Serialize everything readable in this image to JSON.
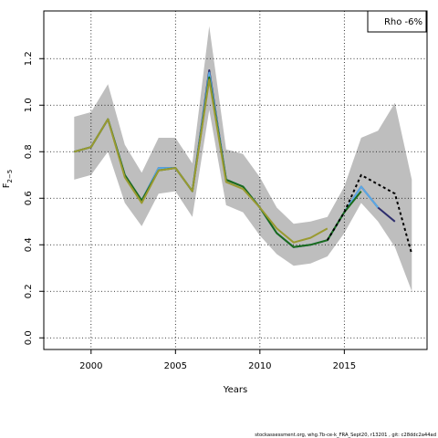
{
  "chart_data": {
    "type": "line",
    "xlabel": "Years",
    "ylabel": "F",
    "ylabel_subscript": "2−5",
    "legend_text": "Rho -6%",
    "legend_placement": "top-right",
    "footer": "stockassessment.org, whg.7b-ce-k_FRA_Sept20, r13201 , git: c28ddc2a44ad",
    "grid": true,
    "xlim": [
      1997.2,
      2019.9
    ],
    "ylim": [
      -0.05,
      1.405
    ],
    "x_ticks": [
      2000,
      2005,
      2010,
      2015
    ],
    "y_ticks": [
      0.0,
      0.2,
      0.4,
      0.6,
      0.8,
      1.0,
      1.2
    ],
    "x_tick_labels": [
      "2000",
      "2005",
      "2010",
      "2015"
    ],
    "y_tick_labels": [
      "0.0",
      "0.2",
      "0.4",
      "0.6",
      "0.8",
      "1.0",
      "1.2"
    ],
    "confidence_band": {
      "x": [
        1999,
        2000,
        2001,
        2002,
        2003,
        2004,
        2005,
        2006,
        2007,
        2008,
        2009,
        2010,
        2011,
        2012,
        2013,
        2014,
        2015,
        2016,
        2017,
        2018,
        2019
      ],
      "lower": [
        0.68,
        0.7,
        0.8,
        0.58,
        0.48,
        0.62,
        0.63,
        0.52,
        0.98,
        0.57,
        0.54,
        0.44,
        0.36,
        0.31,
        0.32,
        0.35,
        0.45,
        0.58,
        0.5,
        0.39,
        0.2
      ],
      "upper": [
        0.95,
        0.97,
        1.09,
        0.83,
        0.71,
        0.86,
        0.86,
        0.75,
        1.34,
        0.81,
        0.79,
        0.69,
        0.56,
        0.49,
        0.5,
        0.52,
        0.65,
        0.86,
        0.89,
        1.01,
        0.68
      ],
      "color": "#bebebe"
    },
    "series": [
      {
        "color": "#2e2e6e",
        "x": [
          1999,
          2000,
          2001,
          2002,
          2003,
          2004,
          2005,
          2006,
          2007,
          2008,
          2009,
          2010,
          2011,
          2012,
          2013,
          2014,
          2015,
          2016,
          2017,
          2018
        ],
        "values": [
          0.8,
          0.82,
          0.94,
          0.7,
          0.59,
          0.73,
          0.73,
          0.63,
          1.15,
          0.68,
          0.65,
          0.56,
          0.45,
          0.39,
          0.4,
          0.42,
          0.54,
          0.65,
          0.56,
          0.5
        ]
      },
      {
        "color": "#5aa9e6",
        "x": [
          1999,
          2000,
          2001,
          2002,
          2003,
          2004,
          2005,
          2006,
          2007,
          2008,
          2009,
          2010,
          2011,
          2012,
          2013,
          2014,
          2015,
          2016,
          2017
        ],
        "values": [
          0.8,
          0.82,
          0.94,
          0.7,
          0.59,
          0.73,
          0.73,
          0.63,
          1.14,
          0.68,
          0.65,
          0.56,
          0.45,
          0.39,
          0.4,
          0.42,
          0.54,
          0.65,
          0.56
        ]
      },
      {
        "color": "#1a6b1a",
        "x": [
          1999,
          2000,
          2001,
          2002,
          2003,
          2004,
          2005,
          2006,
          2007,
          2008,
          2009,
          2010,
          2011,
          2012,
          2013,
          2014,
          2015,
          2016
        ],
        "values": [
          0.8,
          0.82,
          0.94,
          0.7,
          0.59,
          0.72,
          0.73,
          0.63,
          1.12,
          0.68,
          0.65,
          0.56,
          0.45,
          0.39,
          0.4,
          0.42,
          0.54,
          0.63
        ]
      },
      {
        "color": "#9a9a30",
        "x": [
          1999,
          2000,
          2001,
          2002,
          2003,
          2004,
          2005,
          2006,
          2007,
          2008,
          2009,
          2010,
          2011,
          2012,
          2013,
          2014
        ],
        "values": [
          0.8,
          0.82,
          0.94,
          0.69,
          0.58,
          0.72,
          0.73,
          0.63,
          1.11,
          0.67,
          0.64,
          0.56,
          0.47,
          0.41,
          0.43,
          0.47
        ]
      },
      {
        "color": "#000000",
        "dashed": true,
        "x": [
          2014,
          2015,
          2016,
          2017,
          2018,
          2019
        ],
        "values": [
          0.42,
          0.54,
          0.7,
          0.66,
          0.62,
          0.36
        ]
      }
    ]
  }
}
